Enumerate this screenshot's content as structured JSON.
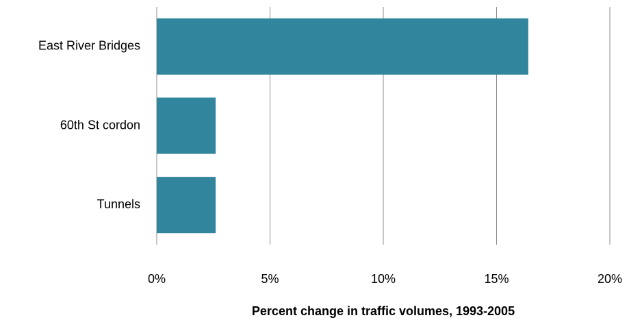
{
  "chart_data": {
    "type": "bar",
    "orientation": "horizontal",
    "x_label": "Percent change in traffic volumes, 1993-2005",
    "categories": [
      "East River Bridges",
      "60th St cordon",
      "Tunnels"
    ],
    "values": [
      16.4,
      2.6,
      2.6
    ],
    "color": "#31859c",
    "xlim": [
      0,
      20
    ],
    "xticks": [
      {
        "value": 0,
        "label": "0%"
      },
      {
        "value": 5,
        "label": "5%"
      },
      {
        "value": 10,
        "label": "10%"
      },
      {
        "value": 15,
        "label": "15%"
      },
      {
        "value": 20,
        "label": "20%"
      }
    ],
    "grid": true
  }
}
